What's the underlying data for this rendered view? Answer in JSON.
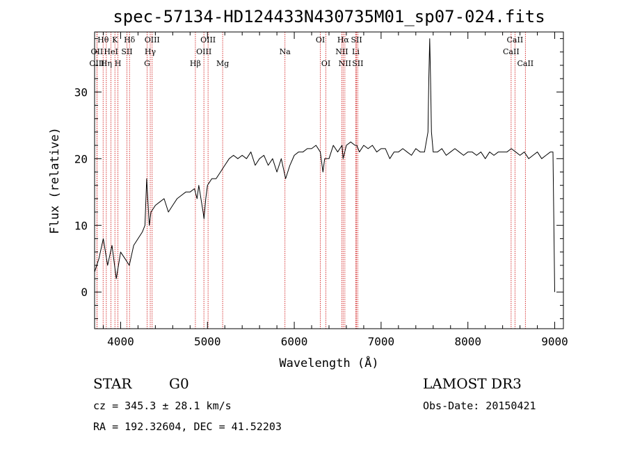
{
  "chart_data": {
    "type": "line",
    "title": "spec-57134-HD124433N430735M01_sp07-024.fits",
    "xlabel": "Wavelength (Å)",
    "ylabel": "Flux (relative)",
    "xlim": [
      3700,
      9100
    ],
    "ylim": [
      -5.5,
      39
    ],
    "xticks": [
      4000,
      5000,
      6000,
      7000,
      8000,
      9000
    ],
    "yticks": [
      0,
      10,
      20,
      30
    ],
    "grid": false,
    "series": [
      {
        "x": [
          3700,
          3750,
          3800,
          3850,
          3900,
          3950,
          4000,
          4050,
          4100,
          4150,
          4200,
          4250,
          4280,
          4300,
          4330,
          4350,
          4400,
          4450,
          4500,
          4550,
          4600,
          4650,
          4700,
          4750,
          4800,
          4850,
          4880,
          4900,
          4950,
          4960,
          4980,
          5000,
          5050,
          5100,
          5150,
          5200,
          5250,
          5300,
          5350,
          5400,
          5450,
          5500,
          5550,
          5600,
          5650,
          5700,
          5750,
          5800,
          5850,
          5900,
          5950,
          6000,
          6050,
          6100,
          6150,
          6200,
          6250,
          6300,
          6330,
          6350,
          6400,
          6450,
          6500,
          6550,
          6563,
          6600,
          6650,
          6700,
          6720,
          6750,
          6800,
          6850,
          6900,
          6950,
          7000,
          7050,
          7100,
          7150,
          7200,
          7250,
          7300,
          7350,
          7400,
          7450,
          7500,
          7540,
          7550,
          7560,
          7570,
          7580,
          7600,
          7650,
          7700,
          7750,
          7800,
          7850,
          7900,
          7950,
          8000,
          8050,
          8100,
          8150,
          8200,
          8250,
          8300,
          8350,
          8400,
          8450,
          8500,
          8550,
          8600,
          8650,
          8700,
          8750,
          8800,
          8850,
          8900,
          8950,
          8980,
          9000
        ],
        "y": [
          3,
          5,
          8,
          4,
          7,
          2,
          6,
          5,
          4,
          7,
          8,
          9,
          10,
          17,
          10,
          12,
          13,
          13.5,
          14,
          12,
          13,
          14,
          14.5,
          15,
          15,
          15.5,
          14,
          16,
          12,
          11,
          14,
          16,
          17,
          17,
          18,
          19,
          20,
          20.5,
          20,
          20.5,
          20,
          21,
          19,
          20,
          20.5,
          19,
          20,
          18,
          20,
          17,
          19,
          20.5,
          21,
          21,
          21.5,
          21.5,
          22,
          21,
          18,
          20,
          20,
          22,
          21,
          22,
          20,
          22,
          22.5,
          22,
          22,
          21,
          22,
          21.5,
          22,
          21,
          21.5,
          21.5,
          20,
          21,
          21,
          21.5,
          21,
          20.5,
          21.5,
          21,
          21,
          24,
          32,
          38,
          32,
          24,
          21,
          21,
          21.5,
          20.5,
          21,
          21.5,
          21,
          20.5,
          21,
          21,
          20.5,
          21,
          20,
          21,
          20.5,
          21,
          21,
          21,
          21.5,
          21,
          20.5,
          21,
          20,
          20.5,
          21,
          20,
          20.5,
          21,
          21,
          0
        ]
      }
    ],
    "lines": [
      {
        "label": "Hθ",
        "x": 3798,
        "row": 1
      },
      {
        "label": "OII",
        "x": 3727,
        "row": 2
      },
      {
        "label": "Hη",
        "x": 3835,
        "row": 3
      },
      {
        "label": "OIII",
        "x": 3727,
        "row": 3
      },
      {
        "label": "K",
        "x": 3934,
        "row": 1
      },
      {
        "label": "HeI",
        "x": 3889,
        "row": 2
      },
      {
        "label": "H",
        "x": 3969,
        "row": 3
      },
      {
        "label": "SII",
        "x": 4072,
        "row": 2
      },
      {
        "label": "Hδ",
        "x": 4102,
        "row": 1
      },
      {
        "label": "OIII",
        "x": 4363,
        "row": 1
      },
      {
        "label": "Hγ",
        "x": 4341,
        "row": 2
      },
      {
        "label": "G",
        "x": 4305,
        "row": 3
      },
      {
        "label": "Hβ",
        "x": 4861,
        "row": 3
      },
      {
        "label": "OIII",
        "x": 4959,
        "row": 2
      },
      {
        "label": "OIII",
        "x": 5007,
        "row": 1
      },
      {
        "label": "Mg",
        "x": 5175,
        "row": 3
      },
      {
        "label": "Na",
        "x": 5893,
        "row": 2
      },
      {
        "label": "OI",
        "x": 6300,
        "row": 1
      },
      {
        "label": "OI",
        "x": 6364,
        "row": 3
      },
      {
        "label": "Hα",
        "x": 6563,
        "row": 1
      },
      {
        "label": "NII",
        "x": 6548,
        "row": 2
      },
      {
        "label": "NII",
        "x": 6583,
        "row": 3
      },
      {
        "label": "Li",
        "x": 6708,
        "row": 2
      },
      {
        "label": "SII",
        "x": 6717,
        "row": 1
      },
      {
        "label": "SII",
        "x": 6731,
        "row": 3
      },
      {
        "label": "CaII",
        "x": 8498,
        "row": 2
      },
      {
        "label": "CaII",
        "x": 8542,
        "row": 1
      },
      {
        "label": "CaII",
        "x": 8662,
        "row": 3
      }
    ]
  },
  "info": {
    "object_class": "STAR",
    "subclass": "G0",
    "redshift": "cz = 345.3 ± 28.1 km/s",
    "coords": "RA = 192.32604, DEC =  41.52203",
    "survey": "LAMOST DR3",
    "obs_date": "Obs-Date: 20150421"
  },
  "colors": {
    "spectrum": "#000000",
    "line_markers": "#cc0000",
    "axes": "#000000",
    "background": "#ffffff"
  }
}
